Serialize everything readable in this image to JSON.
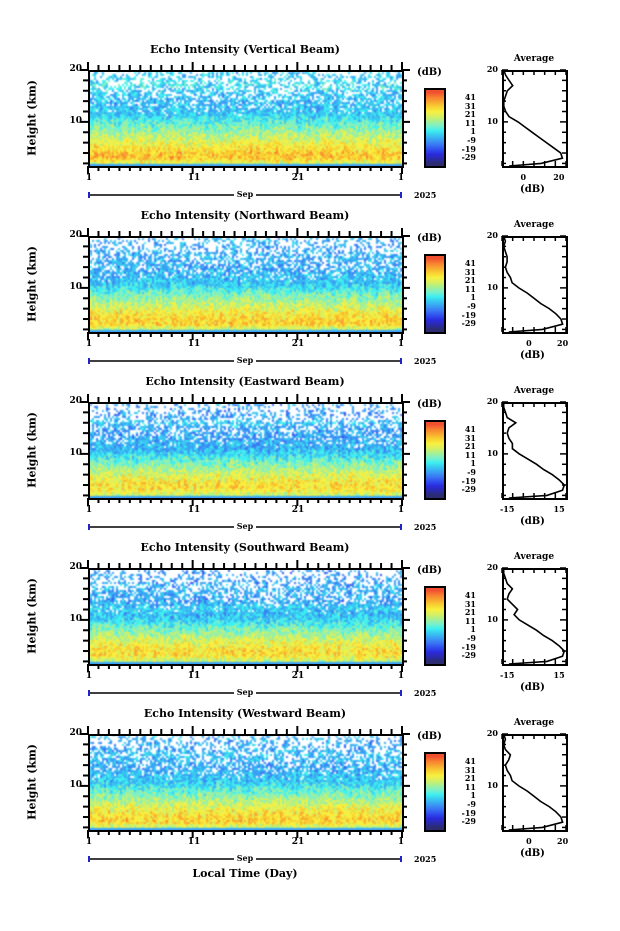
{
  "chart_data": {
    "type": "heatmap",
    "panels": [
      {
        "title": "Echo Intensity (Vertical Beam)",
        "beam": "vertical",
        "avg_xticks": [
          "0",
          "20"
        ],
        "avg_xlim": [
          -12,
          24
        ],
        "avg_profile": [
          [
            1.5,
            -8
          ],
          [
            2,
            10
          ],
          [
            3,
            22
          ],
          [
            4,
            21
          ],
          [
            5,
            17
          ],
          [
            6,
            13
          ],
          [
            7,
            9
          ],
          [
            8,
            5
          ],
          [
            9,
            1
          ],
          [
            10,
            -3
          ],
          [
            11,
            -8
          ],
          [
            12,
            -10
          ],
          [
            13,
            -11
          ],
          [
            14,
            -11
          ],
          [
            15,
            -10
          ],
          [
            16,
            -9
          ],
          [
            17,
            -6
          ],
          [
            18,
            -8
          ],
          [
            19,
            -10
          ],
          [
            20,
            -11
          ]
        ]
      },
      {
        "title": "Echo Intensity (Northward Beam)",
        "beam": "northward",
        "avg_xticks": [
          "0",
          "20"
        ],
        "avg_xlim": [
          -16,
          22
        ],
        "avg_profile": [
          [
            1.5,
            -12
          ],
          [
            2,
            8
          ],
          [
            3,
            20
          ],
          [
            4,
            19
          ],
          [
            5,
            16
          ],
          [
            6,
            12
          ],
          [
            7,
            7
          ],
          [
            8,
            3
          ],
          [
            9,
            -1
          ],
          [
            10,
            -6
          ],
          [
            11,
            -10
          ],
          [
            12,
            -11
          ],
          [
            13,
            -13
          ],
          [
            14,
            -14
          ],
          [
            15,
            -13
          ],
          [
            16,
            -13
          ],
          [
            17,
            -14
          ],
          [
            18,
            -15
          ],
          [
            19,
            -14
          ],
          [
            20,
            -15
          ]
        ]
      },
      {
        "title": "Echo Intensity (Eastward Beam)",
        "beam": "eastward",
        "avg_xticks": [
          "-15",
          "15"
        ],
        "avg_xlim": [
          -18,
          19
        ],
        "avg_profile": [
          [
            1.5,
            -14
          ],
          [
            2,
            8
          ],
          [
            3,
            17
          ],
          [
            4,
            18
          ],
          [
            5,
            15
          ],
          [
            6,
            11
          ],
          [
            7,
            6
          ],
          [
            8,
            2
          ],
          [
            9,
            -3
          ],
          [
            10,
            -8
          ],
          [
            11,
            -12
          ],
          [
            12,
            -12
          ],
          [
            13,
            -14
          ],
          [
            14,
            -15
          ],
          [
            15,
            -14
          ],
          [
            16,
            -10
          ],
          [
            17,
            -15
          ],
          [
            18,
            -16
          ],
          [
            19,
            -17
          ],
          [
            20,
            -17
          ]
        ]
      },
      {
        "title": "Echo Intensity (Southward Beam)",
        "beam": "southward",
        "avg_xticks": [
          "-15",
          "15"
        ],
        "avg_xlim": [
          -18,
          19
        ],
        "avg_profile": [
          [
            1.5,
            -14
          ],
          [
            2,
            8
          ],
          [
            3,
            17
          ],
          [
            4,
            18
          ],
          [
            5,
            15
          ],
          [
            6,
            11
          ],
          [
            7,
            6
          ],
          [
            8,
            2
          ],
          [
            9,
            -3
          ],
          [
            10,
            -8
          ],
          [
            11,
            -11
          ],
          [
            12,
            -9
          ],
          [
            13,
            -12
          ],
          [
            14,
            -15
          ],
          [
            15,
            -14
          ],
          [
            16,
            -12
          ],
          [
            17,
            -15
          ],
          [
            18,
            -16
          ],
          [
            19,
            -17
          ],
          [
            20,
            -17
          ]
        ]
      },
      {
        "title": "Echo Intensity (Westward Beam)",
        "beam": "westward",
        "avg_xticks": [
          "0",
          "20"
        ],
        "avg_xlim": [
          -16,
          22
        ],
        "avg_profile": [
          [
            1.5,
            -12
          ],
          [
            2,
            8
          ],
          [
            3,
            20
          ],
          [
            4,
            19
          ],
          [
            5,
            16
          ],
          [
            6,
            12
          ],
          [
            7,
            7
          ],
          [
            8,
            3
          ],
          [
            9,
            -1
          ],
          [
            10,
            -6
          ],
          [
            11,
            -10
          ],
          [
            12,
            -11
          ],
          [
            13,
            -13
          ],
          [
            14,
            -14
          ],
          [
            15,
            -12
          ],
          [
            16,
            -11
          ],
          [
            17,
            -14
          ],
          [
            18,
            -15
          ],
          [
            19,
            -14
          ],
          [
            20,
            -15
          ]
        ]
      }
    ],
    "ylabel": "Height (km)",
    "ylim": [
      1.5,
      20
    ],
    "yticks": [
      "20",
      "10"
    ],
    "xticks": [
      "1",
      "11",
      "21",
      "1"
    ],
    "xlim_days": [
      1,
      31
    ],
    "month_label": "Sep",
    "year_label": "2025",
    "xlabel": "Local Time (Day)",
    "colorbar": {
      "unit": "(dB)",
      "ticks": [
        "41",
        "31",
        "21",
        "11",
        "1",
        "-9",
        "-19",
        "-29"
      ],
      "range": [
        -34,
        46
      ],
      "colors": [
        "#2c2c6e",
        "#2a2aa8",
        "#2b2bdc",
        "#2f4ff0",
        "#3b78f4",
        "#3aa0f4",
        "#38c8f0",
        "#40f0f0",
        "#7ef0c8",
        "#a8f090",
        "#d8f060",
        "#f8f040",
        "#f8d030",
        "#f8a830",
        "#f88030",
        "#f05030"
      ]
    },
    "avg_title": "Average",
    "avg_unit": "(dB)",
    "avg_yticks": [
      "20",
      "10"
    ]
  }
}
